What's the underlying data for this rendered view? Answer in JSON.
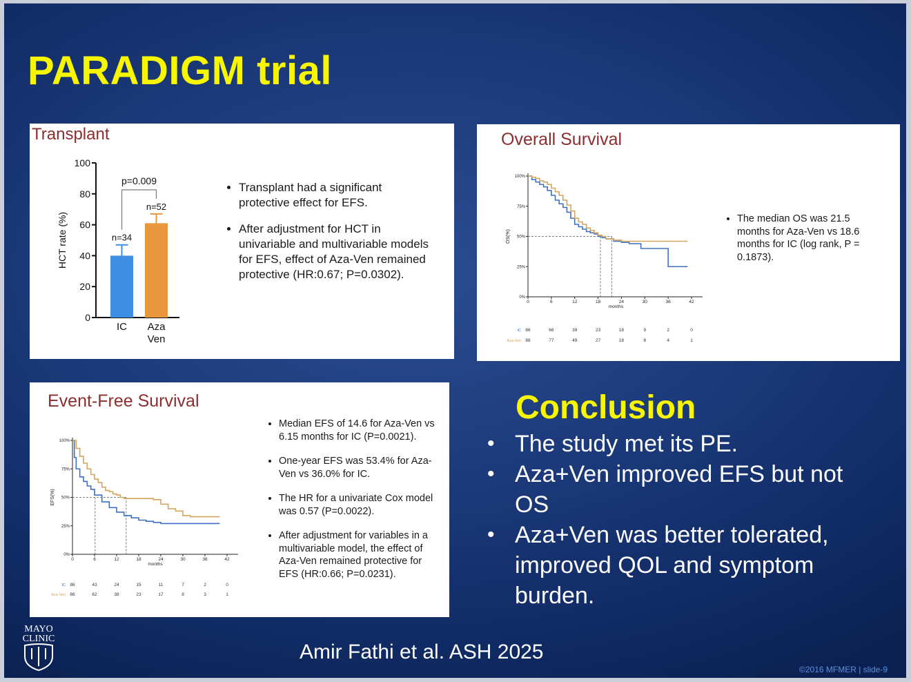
{
  "title": "PARADIGM trial",
  "transplant": {
    "title": "Transplant",
    "chart_data": {
      "type": "bar",
      "categories": [
        "IC",
        "Aza Ven"
      ],
      "category_lines": [
        [
          "IC"
        ],
        [
          "Aza",
          "Ven"
        ]
      ],
      "values": [
        40,
        61
      ],
      "error_upper": [
        47,
        67
      ],
      "n_labels": [
        "n=34",
        "n=52"
      ],
      "p_label": "p=0.009",
      "ylabel": "HCT rate (%)",
      "ylim": [
        0,
        100
      ],
      "yticks": [
        "0",
        "20",
        "40",
        "60",
        "80",
        "100"
      ],
      "colors": [
        "#3e8ee6",
        "#e8973d"
      ]
    },
    "bullets": [
      "Transplant had a significant protective effect for EFS.",
      "After adjustment for HCT in univariable and multivariable models for EFS, effect of Aza-Ven remained protective (HR:0.67; P=0.0302)."
    ]
  },
  "os": {
    "title": "Overall Survival",
    "chart_data": {
      "type": "line",
      "ylabel": "OS(%)",
      "xlabel": "months",
      "xlim": [
        0,
        42
      ],
      "ylim": [
        0,
        100
      ],
      "xticks": [
        "0",
        "6",
        "12",
        "18",
        "24",
        "30",
        "36",
        "42"
      ],
      "yticks": [
        "0%",
        "25%",
        "50%",
        "75%",
        "100%"
      ],
      "series": [
        {
          "color": "#3d6fc4",
          "x": [
            0,
            1,
            2,
            3,
            4,
            5,
            6,
            7,
            8,
            9,
            10,
            11,
            12,
            13,
            14,
            15,
            16,
            17,
            18,
            19,
            20,
            21,
            22,
            24,
            26,
            29,
            35,
            36,
            41
          ],
          "y": [
            100,
            97,
            95,
            93,
            91,
            88,
            84,
            80,
            77,
            74,
            70,
            65,
            60,
            58,
            56,
            54,
            53,
            52,
            50,
            49,
            48,
            48,
            46,
            45,
            44,
            40,
            40,
            25,
            25
          ]
        },
        {
          "color": "#d4a35c",
          "x": [
            0,
            1,
            2,
            3,
            4,
            5,
            6,
            7,
            8,
            9,
            10,
            11,
            12,
            13,
            14,
            15,
            16,
            17,
            18,
            19,
            20,
            22,
            24,
            28,
            34,
            41
          ],
          "y": [
            100,
            99,
            98,
            96,
            95,
            93,
            90,
            87,
            84,
            80,
            76,
            71,
            65,
            62,
            60,
            57,
            55,
            53,
            51,
            50,
            48,
            47,
            46,
            46,
            46,
            46
          ]
        }
      ],
      "median_lines_x": [
        18.6,
        21.5
      ],
      "risk_table": [
        {
          "label": "IC",
          "values": [
            "86",
            "66",
            "39",
            "23",
            "18",
            "9",
            "2",
            "0"
          ]
        },
        {
          "label": "Aza-Ven",
          "values": [
            "86",
            "77",
            "49",
            "27",
            "18",
            "8",
            "4",
            "1"
          ]
        }
      ]
    },
    "bullets": [
      "The median OS was 21.5 months for Aza-Ven vs 18.6 months for IC (log rank, P = 0.1873)."
    ]
  },
  "efs": {
    "title": "Event-Free Survival",
    "chart_data": {
      "type": "line",
      "ylabel": "EFS(%)",
      "xlabel": "months",
      "xlim": [
        0,
        42
      ],
      "ylim": [
        0,
        100
      ],
      "xticks": [
        "0",
        "6",
        "12",
        "18",
        "24",
        "30",
        "36",
        "42"
      ],
      "yticks": [
        "0%",
        "25%",
        "50%",
        "75%",
        "100%"
      ],
      "series": [
        {
          "color": "#3d6fc4",
          "x": [
            0,
            0.5,
            1,
            2,
            3,
            4,
            5,
            6,
            8,
            10,
            12,
            14,
            16,
            18,
            20,
            22,
            24,
            28,
            32,
            36,
            40
          ],
          "y": [
            100,
            85,
            75,
            68,
            64,
            60,
            57,
            52,
            46,
            41,
            37,
            34,
            32,
            30,
            29,
            28,
            27,
            27,
            27,
            27,
            27
          ]
        },
        {
          "color": "#d4a35c",
          "x": [
            0,
            1,
            2,
            3,
            4,
            5,
            6,
            7,
            8,
            9,
            10,
            11,
            12,
            13,
            14,
            16,
            18,
            20,
            22,
            24,
            26,
            28,
            30,
            32,
            40
          ],
          "y": [
            100,
            93,
            86,
            80,
            75,
            70,
            66,
            63,
            59,
            56,
            55,
            53,
            52,
            50,
            49,
            49,
            49,
            49,
            48,
            44,
            40,
            38,
            34,
            33,
            33
          ]
        }
      ],
      "median_lines_x": [
        6.15,
        14.6
      ],
      "risk_table": [
        {
          "label": "IC",
          "values": [
            "86",
            "43",
            "24",
            "15",
            "11",
            "7",
            "2",
            "0"
          ]
        },
        {
          "label": "Aza-Ven",
          "values": [
            "86",
            "62",
            "38",
            "23",
            "17",
            "8",
            "3",
            "1"
          ]
        }
      ]
    },
    "bullets": [
      "Median EFS of 14.6 for Aza-Ven vs 6.15 months for IC (P=0.0021).",
      "One-year EFS was 53.4% for Aza-Ven vs 36.0% for IC.",
      "The HR for a univariate Cox model was 0.57 (P=0.0022).",
      "After adjustment for variables in a multivariable model, the effect of Aza-Ven remained protective for EFS (HR:0.66; P=0.0231)."
    ]
  },
  "conclusion": {
    "title": "Conclusion",
    "items": [
      {
        "text": "The study met its PE.",
        "lines": [
          "The study met its PE."
        ]
      },
      {
        "text": "Aza+Ven improved EFS but not OS",
        "lines": [
          "Aza+Ven improved EFS but not",
          "OS"
        ]
      },
      {
        "text": "Aza+Ven was better tolerated, improved QOL and symptom burden.",
        "lines": [
          "Aza+Ven was better tolerated,",
          "improved QOL and symptom",
          "burden."
        ]
      }
    ]
  },
  "citation": "Amir Fathi et al. ASH 2025",
  "footer": "©2016 MFMER  |  slide-9",
  "logo": {
    "lines": [
      "MAYO",
      "CLINIC"
    ]
  }
}
